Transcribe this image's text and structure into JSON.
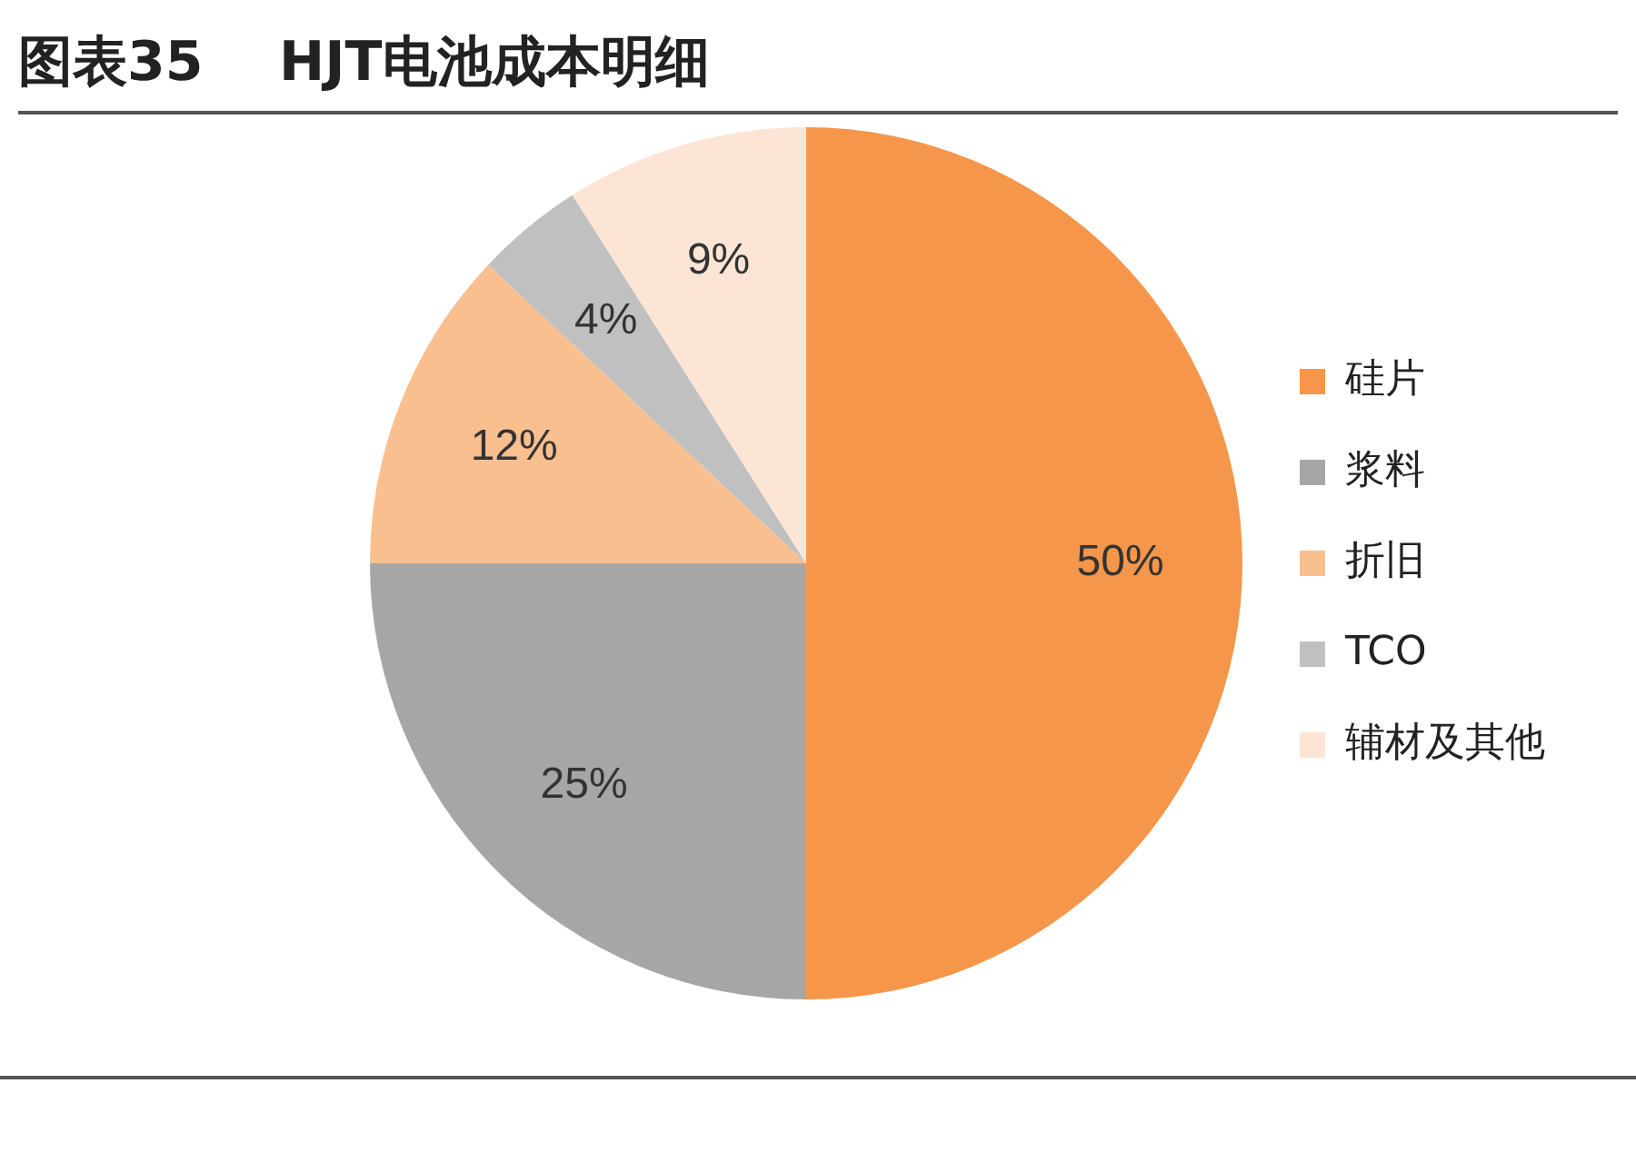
{
  "chart_data": {
    "type": "pie",
    "title": "图表35    HJT电池成本明细",
    "categories": [
      "硅片",
      "浆料",
      "折旧",
      "TCO",
      "辅材及其他"
    ],
    "values": [
      50,
      25,
      12,
      4,
      9
    ],
    "value_labels": [
      "50%",
      "25%",
      "12%",
      "4%",
      "9%"
    ],
    "colors": [
      "#f5964a",
      "#a6a6a6",
      "#f9bf8f",
      "#c0c0c0",
      "#fde5d5"
    ],
    "legend": "right"
  }
}
